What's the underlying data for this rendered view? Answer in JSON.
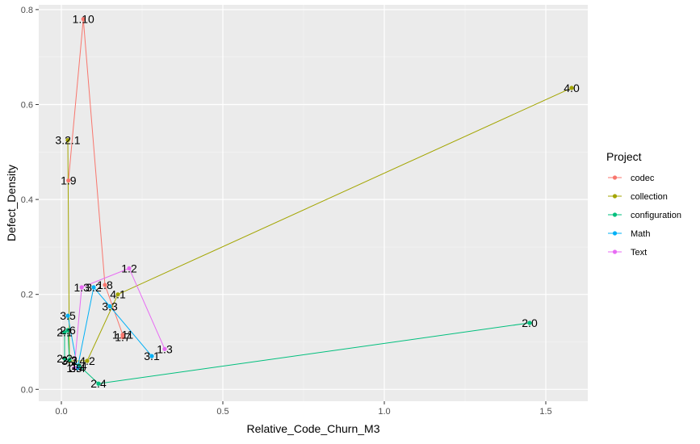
{
  "chart_data": {
    "type": "line",
    "title": "",
    "xlabel": "Relative_Code_Churn_M3",
    "ylabel": "Defect_Density",
    "xlim": [
      -0.07,
      1.63
    ],
    "ylim": [
      -0.025,
      0.81
    ],
    "xticks": [
      0.0,
      0.5,
      1.0,
      1.5
    ],
    "xtick_labels": [
      "0.0",
      "0.5",
      "1.0",
      "1.5"
    ],
    "yticks": [
      0.0,
      0.2,
      0.4,
      0.6,
      0.8
    ],
    "ytick_labels": [
      "0.0",
      "0.2",
      "0.4",
      "0.6",
      "0.8"
    ],
    "grid": true,
    "background": "#EBEBEB",
    "legend": {
      "title": "Project",
      "position": "right"
    },
    "series": [
      {
        "name": "codec",
        "color": "#F8766D",
        "points": [
          {
            "x": 0.022,
            "y": 0.44,
            "label": "1.9"
          },
          {
            "x": 0.068,
            "y": 0.78,
            "label": "1.10"
          },
          {
            "x": 0.135,
            "y": 0.22,
            "label": "1.8"
          },
          {
            "x": 0.19,
            "y": 0.115,
            "label": "1.11"
          },
          {
            "x": 0.19,
            "y": 0.11,
            "label": "1.7"
          }
        ]
      },
      {
        "name": "collection",
        "color": "#A3A500",
        "points": [
          {
            "x": 1.58,
            "y": 0.635,
            "label": "4.0"
          },
          {
            "x": 0.175,
            "y": 0.2,
            "label": "4.1"
          },
          {
            "x": 0.08,
            "y": 0.06,
            "label": "4.2"
          },
          {
            "x": 0.025,
            "y": 0.06,
            "label": "3.2"
          },
          {
            "x": 0.02,
            "y": 0.525,
            "label": "3.2.1"
          }
        ]
      },
      {
        "name": "configuration",
        "color": "#00BF7D",
        "points": [
          {
            "x": 1.45,
            "y": 0.14,
            "label": "2.0"
          },
          {
            "x": 0.115,
            "y": 0.012,
            "label": "2.4"
          },
          {
            "x": 0.055,
            "y": 0.05,
            "label": "1.4"
          },
          {
            "x": 0.01,
            "y": 0.065,
            "label": "2.2"
          },
          {
            "x": 0.01,
            "y": 0.12,
            "label": "2.1"
          },
          {
            "x": 0.02,
            "y": 0.125,
            "label": "2.6"
          },
          {
            "x": 0.025,
            "y": 0.062,
            "label": "2.3"
          }
        ]
      },
      {
        "name": "Math",
        "color": "#00B0F6",
        "points": [
          {
            "x": 0.28,
            "y": 0.07,
            "label": "3.1"
          },
          {
            "x": 0.15,
            "y": 0.175,
            "label": "3.3"
          },
          {
            "x": 0.1,
            "y": 0.215,
            "label": "3.2"
          },
          {
            "x": 0.05,
            "y": 0.045,
            "label": "3.4"
          },
          {
            "x": 0.02,
            "y": 0.155,
            "label": "3.5"
          }
        ]
      },
      {
        "name": "Text",
        "color": "#E76BF3",
        "points": [
          {
            "x": 0.04,
            "y": 0.045,
            "label": "1.5"
          },
          {
            "x": 0.063,
            "y": 0.215,
            "label": "1.3"
          },
          {
            "x": 0.21,
            "y": 0.255,
            "label": "1.2"
          },
          {
            "x": 0.32,
            "y": 0.085,
            "label": "1.3"
          }
        ]
      }
    ]
  }
}
